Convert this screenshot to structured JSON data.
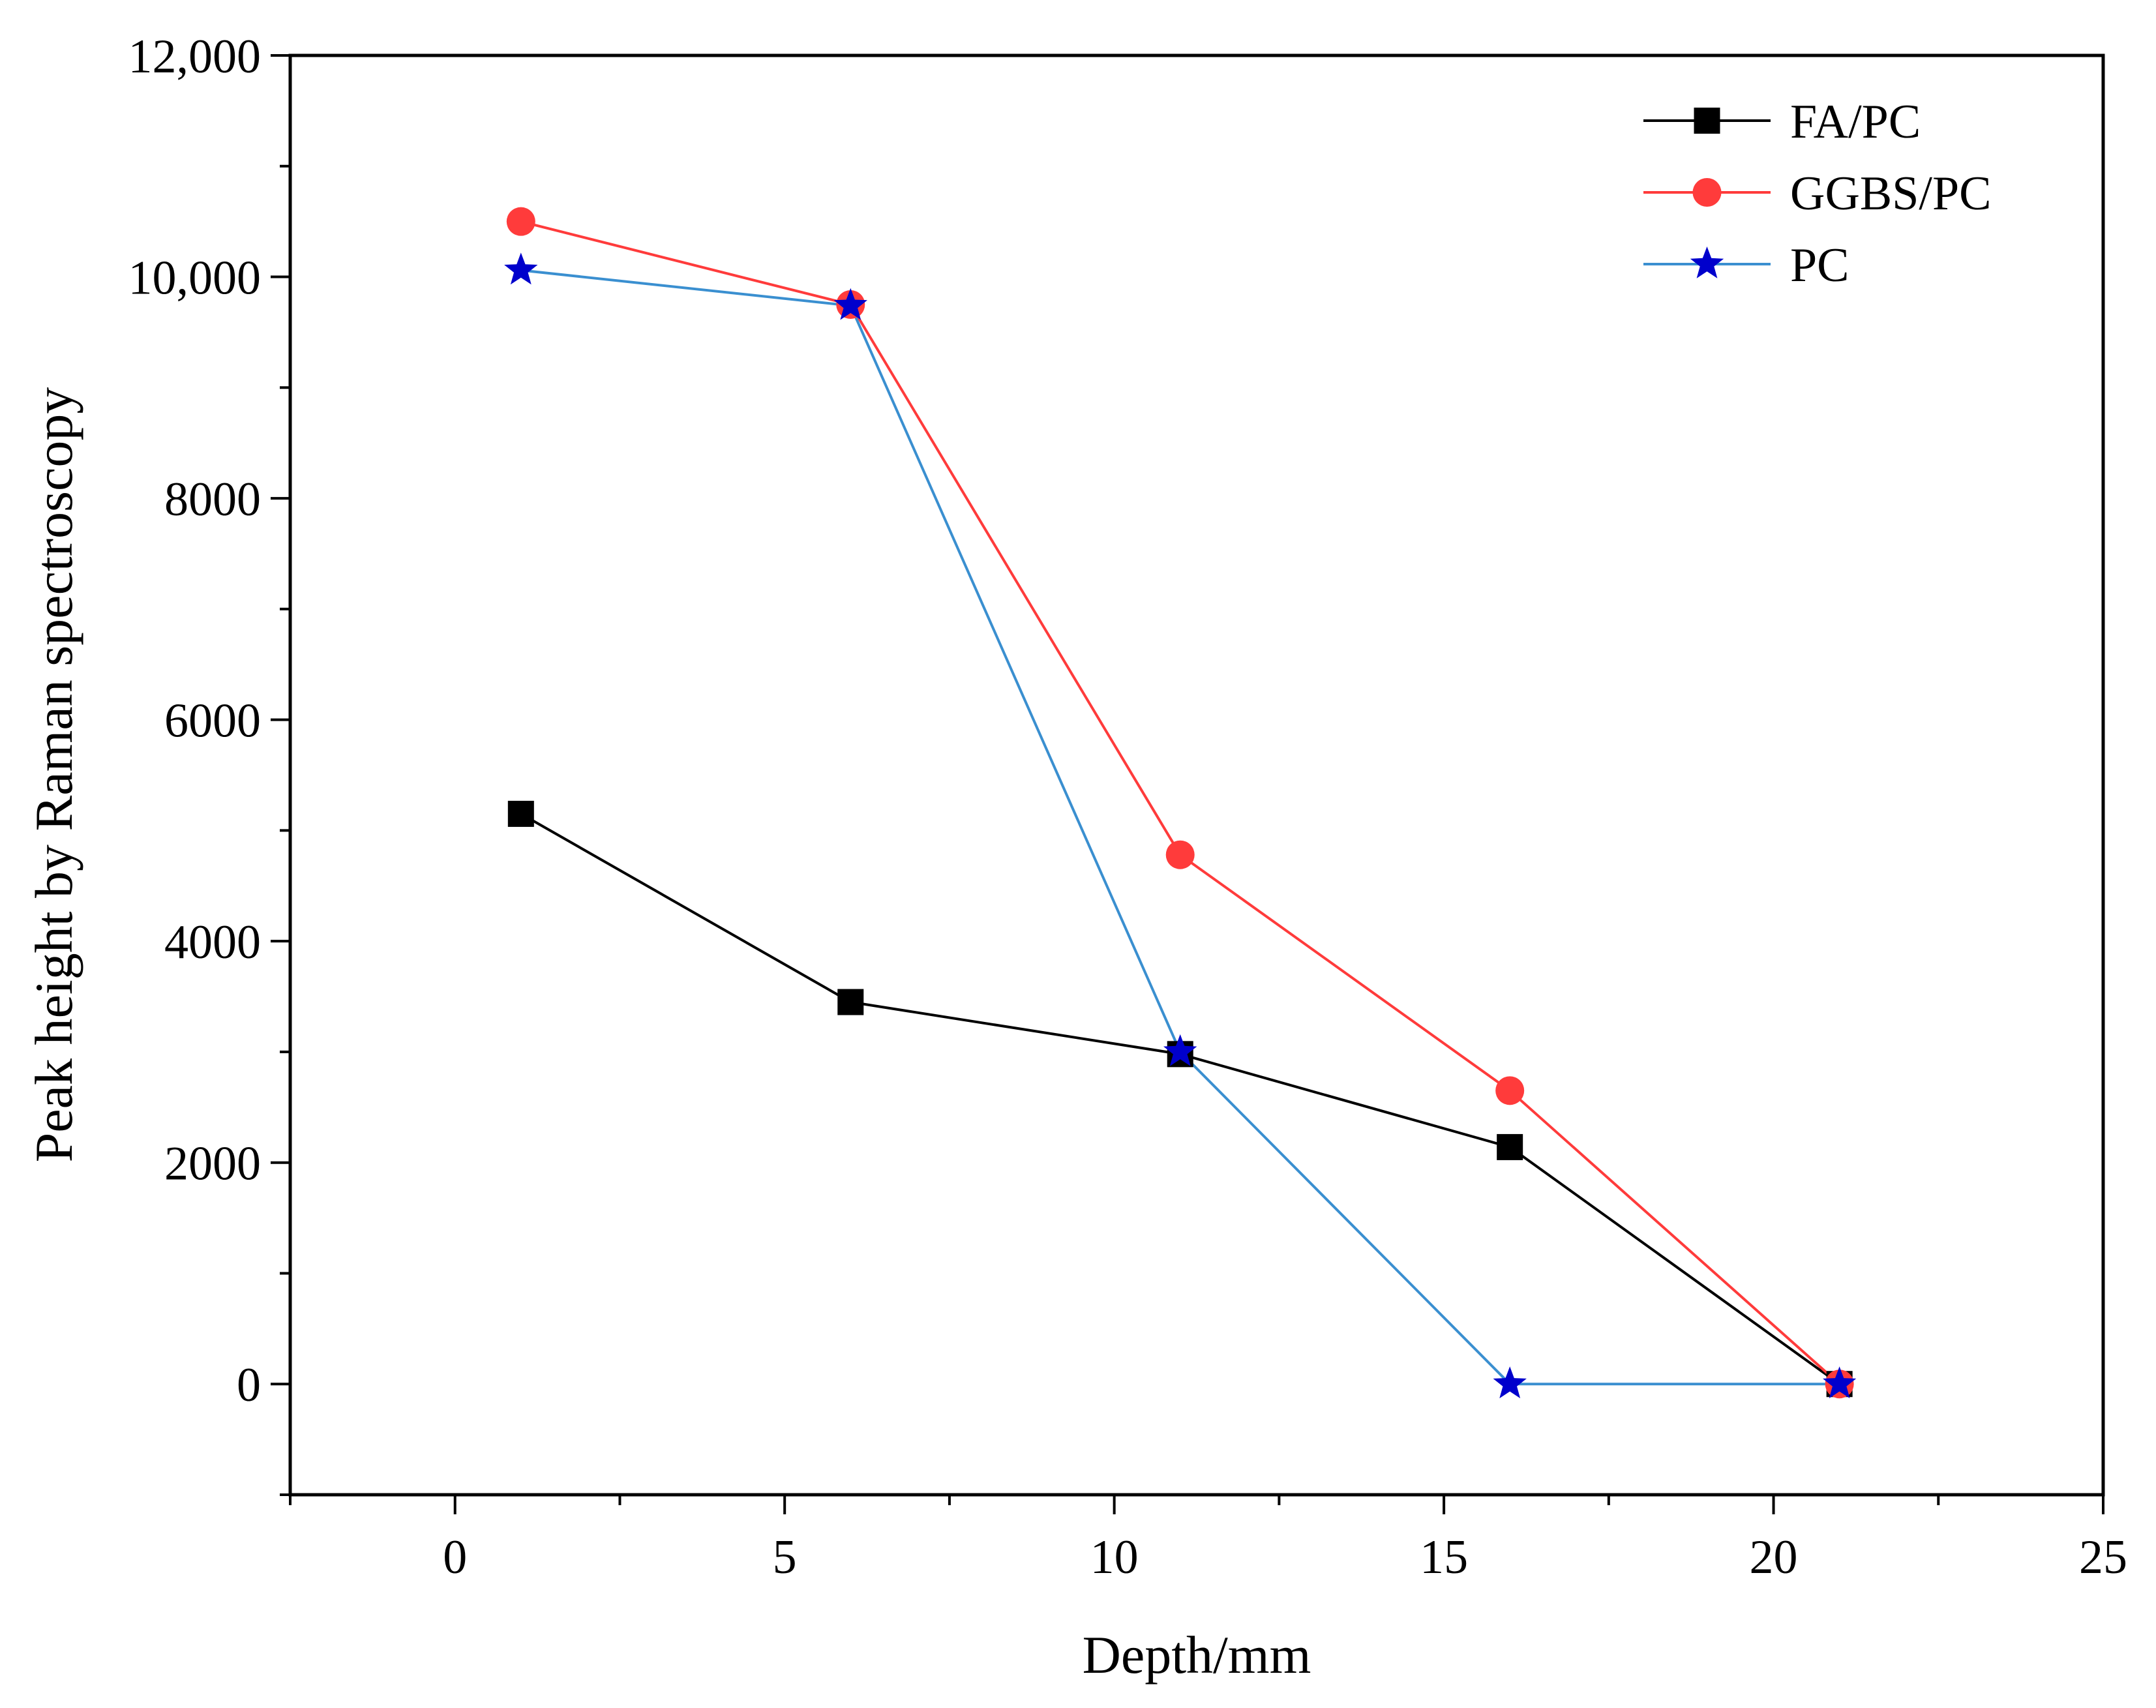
{
  "chart_data": {
    "type": "line",
    "title": "",
    "xlabel": "Depth/mm",
    "ylabel": "Peak height by Raman spectroscopy",
    "xlim": [
      -2.5,
      25
    ],
    "ylim": [
      -1000,
      12000
    ],
    "x_ticks": [
      0,
      5,
      10,
      15,
      20,
      25
    ],
    "x_tick_labels": [
      "0",
      "5",
      "10",
      "15",
      "20",
      "25"
    ],
    "y_ticks": [
      0,
      2000,
      4000,
      6000,
      8000,
      10000,
      12000
    ],
    "y_tick_labels": [
      "0",
      "2000",
      "4000",
      "6000",
      "8000",
      "10,000",
      "12,000"
    ],
    "grid": false,
    "legend_position": "top-right",
    "x": [
      1,
      6,
      11,
      16,
      21
    ],
    "series": [
      {
        "name": "FA/PC",
        "values": [
          5150,
          3450,
          2980,
          2140,
          0
        ],
        "color": "#000000",
        "marker": "square"
      },
      {
        "name": "GGBS/PC",
        "values": [
          10500,
          9750,
          4780,
          2650,
          0
        ],
        "color": "#ff3b3b",
        "marker": "circle"
      },
      {
        "name": "PC",
        "values": [
          10060,
          9740,
          3000,
          0,
          0
        ],
        "color": "#0000cc",
        "line_color": "#3a8fd0",
        "marker": "star"
      }
    ]
  }
}
